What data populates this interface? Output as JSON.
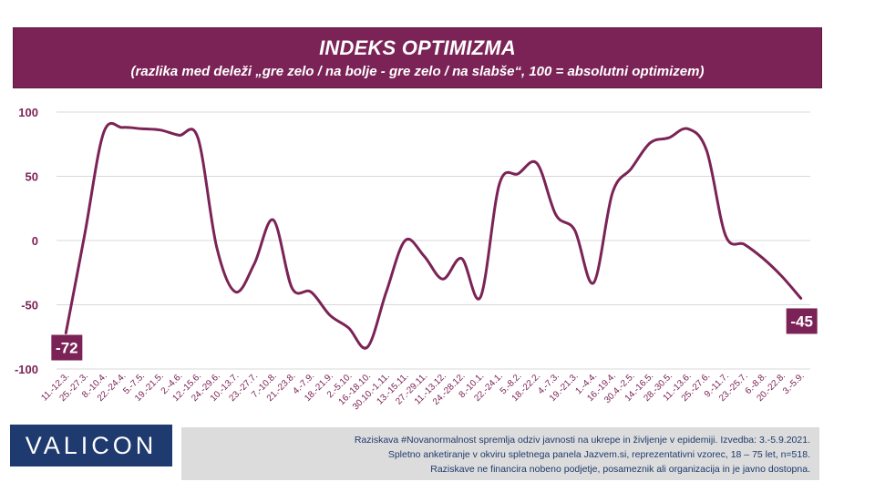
{
  "chart_data": {
    "type": "line",
    "title": "INDEKS OPTIMIZMA",
    "subtitle": "(razlika med deleži „gre zelo / na bolje - gre zelo / na slabše“, 100 = absolutni optimizem)",
    "categories": [
      "11.-12.3.",
      "25.-27.3.",
      "8.-10.4.",
      "22.-24.4.",
      "5.-7.5.",
      "19.-21.5.",
      "2.-4.6.",
      "12.-15.6.",
      "24.-29.6.",
      "10.-13.7.",
      "23.-27.7.",
      "7.-10.8.",
      "21.-23.8.",
      "4.-7.9.",
      "18.-21.9.",
      "2.-5.10.",
      "16.-18.10.",
      "30.10.-1.11.",
      "13.-15.11.",
      "27.-29.11.",
      "11.-13.12.",
      "24.-28.12.",
      "8.-10.1.",
      "22.-24.1.",
      "5.-8.2.",
      "18.-22.2.",
      "4.-7.3.",
      "19.-21.3.",
      "1.-4.4.",
      "16.-19.4.",
      "30.4.-2.5.",
      "14.-16.5.",
      "28.-30.5.",
      "11.-13.6.",
      "25.-27.6.",
      "9.-11.7.",
      "23.-25.7.",
      "6.-8.8.",
      "20.-22.8.",
      "3.-5.9."
    ],
    "values": [
      -72,
      5,
      84,
      88,
      87,
      86,
      82,
      80,
      -5,
      -40,
      -18,
      16,
      -37,
      -40,
      -58,
      -68,
      -83,
      -40,
      0,
      -12,
      -30,
      -14,
      -44,
      44,
      52,
      60,
      20,
      8,
      -33,
      37,
      56,
      76,
      80,
      87,
      70,
      4,
      -3,
      -14,
      -28,
      -45
    ],
    "ylim": [
      -100,
      100
    ],
    "yticks": [
      100,
      50,
      0,
      -50,
      -100
    ],
    "grid": true,
    "line_color": "#7b2356",
    "label_bg": "#7b2356",
    "end_labels": {
      "first": "-72",
      "last": "-45"
    }
  },
  "logo": {
    "text": "VALICON",
    "color": "#1e3a6e"
  },
  "footer": {
    "line1": "Raziskava #Novanormalnost spremlja odziv javnosti na ukrepe in življenje v epidemiji. Izvedba: 3.-5.9.2021.",
    "line2": "Spletno anketiranje v okviru spletnega panela Jazvem.si, reprezentativni vzorec, 18 – 75 let, n=518.",
    "line3": "Raziskave ne financira nobeno podjetje, posameznik ali organizacija in je javno dostopna."
  }
}
